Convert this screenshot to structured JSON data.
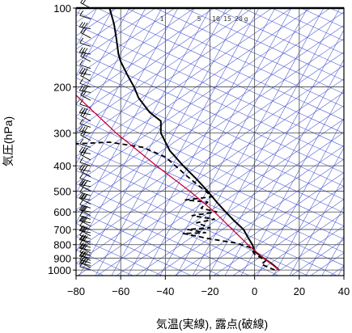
{
  "chart_data": {
    "type": "line",
    "title": "",
    "xlabel": "気温(実線), 露点(破線)",
    "ylabel": "気圧(hPa)",
    "xlim": [
      -80,
      40
    ],
    "ylim": [
      1050,
      100
    ],
    "y_scale": "log",
    "x_ticks": [
      -80,
      -60,
      -40,
      -20,
      0,
      20,
      40
    ],
    "x_tick_labels": [
      "−80",
      "−60",
      "−40",
      "−20",
      "0",
      "20",
      "40"
    ],
    "y_ticks": [
      100,
      200,
      300,
      400,
      500,
      600,
      700,
      800,
      900,
      1000
    ],
    "y_tick_labels": [
      "100",
      "200",
      "300",
      "400",
      "500",
      "600",
      "700",
      "800",
      "900",
      "1000"
    ],
    "grid": true,
    "mixing_ratio_labels": [
      "1",
      "5",
      "10",
      "15",
      "20",
      "g"
    ],
    "colors": {
      "temperature": "#000000",
      "dewpoint": "#000000",
      "parcel": "#cc0033",
      "background_lines": "#3344cc",
      "grid": "#444444",
      "wind_barbs": "#000000"
    },
    "series": [
      {
        "name": "気温",
        "style": "solid",
        "points": [
          [
            11,
            1000
          ],
          [
            8,
            950
          ],
          [
            4,
            900
          ],
          [
            0,
            850
          ],
          [
            -1,
            800
          ],
          [
            -3,
            750
          ],
          [
            -5,
            700
          ],
          [
            -9,
            650
          ],
          [
            -13,
            600
          ],
          [
            -17,
            550
          ],
          [
            -19,
            525
          ],
          [
            -21,
            500
          ],
          [
            -26,
            450
          ],
          [
            -32,
            400
          ],
          [
            -38,
            350
          ],
          [
            -42,
            300
          ],
          [
            -42,
            270
          ],
          [
            -47,
            250
          ],
          [
            -52,
            220
          ],
          [
            -54,
            200
          ],
          [
            -57,
            180
          ],
          [
            -60,
            160
          ],
          [
            -61,
            150
          ],
          [
            -62,
            130
          ],
          [
            -63,
            115
          ],
          [
            -65,
            100
          ]
        ]
      },
      {
        "name": "露点",
        "style": "dashed",
        "points": [
          [
            9,
            1000
          ],
          [
            3,
            950
          ],
          [
            5,
            920
          ],
          [
            0,
            870
          ],
          [
            -2,
            820
          ],
          [
            -8,
            790
          ],
          [
            -20,
            760
          ],
          [
            -32,
            725
          ],
          [
            -22,
            720
          ],
          [
            -30,
            700
          ],
          [
            -20,
            690
          ],
          [
            -26,
            660
          ],
          [
            -18,
            640
          ],
          [
            -28,
            620
          ],
          [
            -17,
            600
          ],
          [
            -24,
            580
          ],
          [
            -21,
            550
          ],
          [
            -31,
            540
          ],
          [
            -19,
            525
          ],
          [
            -22,
            500
          ],
          [
            -30,
            440
          ],
          [
            -40,
            370
          ],
          [
            -50,
            340
          ],
          [
            -65,
            325
          ],
          [
            -81,
            330
          ]
        ]
      },
      {
        "name": "",
        "style": "solid-red",
        "points": [
          [
            11,
            1000
          ],
          [
            4,
            900
          ],
          [
            -3,
            800
          ],
          [
            -10,
            700
          ],
          [
            -18,
            600
          ],
          [
            -29,
            500
          ],
          [
            -44,
            400
          ],
          [
            -62,
            300
          ],
          [
            -80,
            215
          ]
        ]
      }
    ],
    "wind_barbs_pressure": [
      1000,
      980,
      960,
      940,
      920,
      900,
      880,
      860,
      840,
      820,
      800,
      780,
      760,
      740,
      720,
      700,
      680,
      660,
      640,
      620,
      600,
      580,
      560,
      540,
      520,
      500,
      480,
      460,
      440,
      420,
      400,
      380,
      360,
      340,
      320,
      300,
      285,
      270,
      255,
      240,
      225,
      210,
      200,
      190,
      180,
      170,
      160,
      150,
      140,
      130,
      120,
      110,
      100
    ]
  }
}
